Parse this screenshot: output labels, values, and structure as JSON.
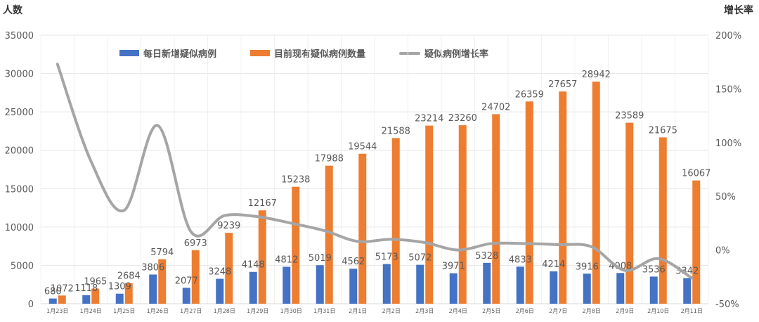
{
  "chart_data": {
    "type": "bar",
    "title": "",
    "ylabel": "人数",
    "y2label": "增长率",
    "ylim": [
      0,
      35000
    ],
    "y2lim": [
      -50,
      200
    ],
    "y_ticks": [
      "0",
      "5000",
      "10000",
      "15000",
      "20000",
      "25000",
      "30000",
      "35000"
    ],
    "y2_ticks": [
      "-50%",
      "0%",
      "50%",
      "100%",
      "150%",
      "200%"
    ],
    "categories": [
      "1月23日",
      "1月24日",
      "1月25日",
      "1月26日",
      "1月27日",
      "1月28日",
      "1月29日",
      "1月30日",
      "1月31日",
      "2月1日",
      "2月2日",
      "2月3日",
      "2月4日",
      "2月5日",
      "2月6日",
      "2月7日",
      "2月8日",
      "2月9日",
      "2月10日",
      "2月11日"
    ],
    "series": [
      {
        "name": "每日新增疑似病例",
        "type": "bar",
        "color": "#4472C4",
        "values": [
          680,
          1118,
          1309,
          3806,
          2077,
          3248,
          4148,
          4812,
          5019,
          4562,
          5173,
          5072,
          3971,
          5328,
          4833,
          4214,
          3916,
          4008,
          3536,
          3342
        ]
      },
      {
        "name": "目前现有疑似病例数量",
        "type": "bar",
        "color": "#ED7D31",
        "values": [
          1072,
          1965,
          2684,
          5794,
          6973,
          9239,
          12167,
          15238,
          17988,
          19544,
          21588,
          23214,
          23260,
          24702,
          26359,
          27657,
          28942,
          23589,
          21675,
          16067
        ]
      },
      {
        "name": "疑似病例增长率",
        "type": "line",
        "axis": "right",
        "color": "#A5A5A5",
        "values": [
          173,
          83,
          37,
          116,
          17,
          32,
          31,
          25,
          18,
          8,
          10,
          7,
          0,
          6,
          6,
          5,
          3,
          -19,
          -8,
          -26
        ]
      }
    ],
    "legend_position": "top",
    "grid": true
  }
}
